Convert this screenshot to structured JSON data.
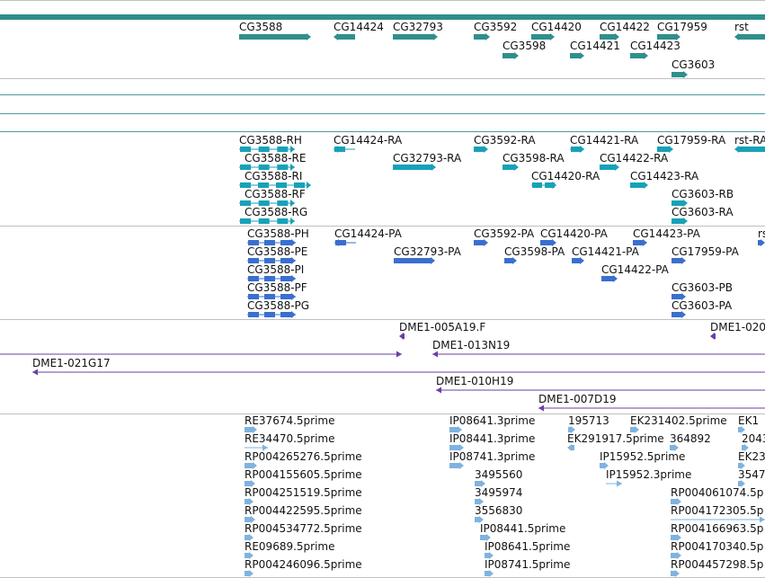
{
  "genes": {
    "color": "#2f8f8c",
    "items": [
      {
        "label": "CG3588"
      },
      {
        "label": "CG14424"
      },
      {
        "label": "CG32793"
      },
      {
        "label": "CG3592"
      },
      {
        "label": "CG14420"
      },
      {
        "label": "CG14422"
      },
      {
        "label": "CG17959"
      },
      {
        "label": "rst"
      },
      {
        "label": "CG3598"
      },
      {
        "label": "CG14421"
      },
      {
        "label": "CG14423"
      },
      {
        "label": "CG3603"
      }
    ]
  },
  "transcripts": {
    "color": "#17a2b8",
    "items": [
      {
        "label": "CG3588-RH"
      },
      {
        "label": "CG14424-RA"
      },
      {
        "label": "CG3592-RA"
      },
      {
        "label": "CG14421-RA"
      },
      {
        "label": "CG17959-RA"
      },
      {
        "label": "rst-RA"
      },
      {
        "label": "CG3588-RE"
      },
      {
        "label": "CG32793-RA"
      },
      {
        "label": "CG3598-RA"
      },
      {
        "label": "CG14422-RA"
      },
      {
        "label": "CG3588-RI"
      },
      {
        "label": "CG14420-RA"
      },
      {
        "label": "CG14423-RA"
      },
      {
        "label": "CG3588-RF"
      },
      {
        "label": "CG3603-RB"
      },
      {
        "label": "CG3588-RG"
      },
      {
        "label": "CG3603-RA"
      }
    ]
  },
  "proteins": {
    "color": "#3a6fcf",
    "items": [
      {
        "label": "CG3588-PH"
      },
      {
        "label": "CG14424-PA"
      },
      {
        "label": "CG3592-PA"
      },
      {
        "label": "CG14420-PA"
      },
      {
        "label": "CG14423-PA"
      },
      {
        "label": "rs"
      },
      {
        "label": "CG3588-PE"
      },
      {
        "label": "CG32793-PA"
      },
      {
        "label": "CG3598-PA"
      },
      {
        "label": "CG14421-PA"
      },
      {
        "label": "CG17959-PA"
      },
      {
        "label": "CG3588-PI"
      },
      {
        "label": "CG14422-PA"
      },
      {
        "label": "CG3588-PF"
      },
      {
        "label": "CG3603-PB"
      },
      {
        "label": "CG3588-PG"
      },
      {
        "label": "CG3603-PA"
      }
    ]
  },
  "clones": {
    "color": "#6a3fa6",
    "items": [
      {
        "label": "DME1-005A19.F"
      },
      {
        "label": "DME1-020"
      },
      {
        "label": "DME1-013N19"
      },
      {
        "label": "DME1-021G17"
      },
      {
        "label": "DME1-010H19"
      },
      {
        "label": "DME1-007D19"
      }
    ]
  },
  "ests": {
    "color": "#7fb3df",
    "items": [
      {
        "label": "RE37674.5prime"
      },
      {
        "label": "IP08641.3prime"
      },
      {
        "label": "195713"
      },
      {
        "label": "EK231402.5prime"
      },
      {
        "label": "EK1"
      },
      {
        "label": "RE34470.5prime"
      },
      {
        "label": "IP08441.3prime"
      },
      {
        "label": "EK291917.5prime"
      },
      {
        "label": "364892"
      },
      {
        "label": "2043"
      },
      {
        "label": "RP004265276.5prime"
      },
      {
        "label": "IP08741.3prime"
      },
      {
        "label": "IP15952.5prime"
      },
      {
        "label": "EK23"
      },
      {
        "label": "RP004155605.5prime"
      },
      {
        "label": "3495560"
      },
      {
        "label": "IP15952.3prime"
      },
      {
        "label": "3547"
      },
      {
        "label": "RP004251519.5prime"
      },
      {
        "label": "3495974"
      },
      {
        "label": "RP004061074.5p"
      },
      {
        "label": "RP004422595.5prime"
      },
      {
        "label": "3556830"
      },
      {
        "label": "RP004172305.5p"
      },
      {
        "label": "RP004534772.5prime"
      },
      {
        "label": "IP08441.5prime"
      },
      {
        "label": "RP004166963.5p"
      },
      {
        "label": "RE09689.5prime"
      },
      {
        "label": "IP08641.5prime"
      },
      {
        "label": "RP004170340.5p"
      },
      {
        "label": "RP004246096.5prime"
      },
      {
        "label": "IP08741.5prime"
      },
      {
        "label": "RP004457298.5p"
      }
    ]
  }
}
